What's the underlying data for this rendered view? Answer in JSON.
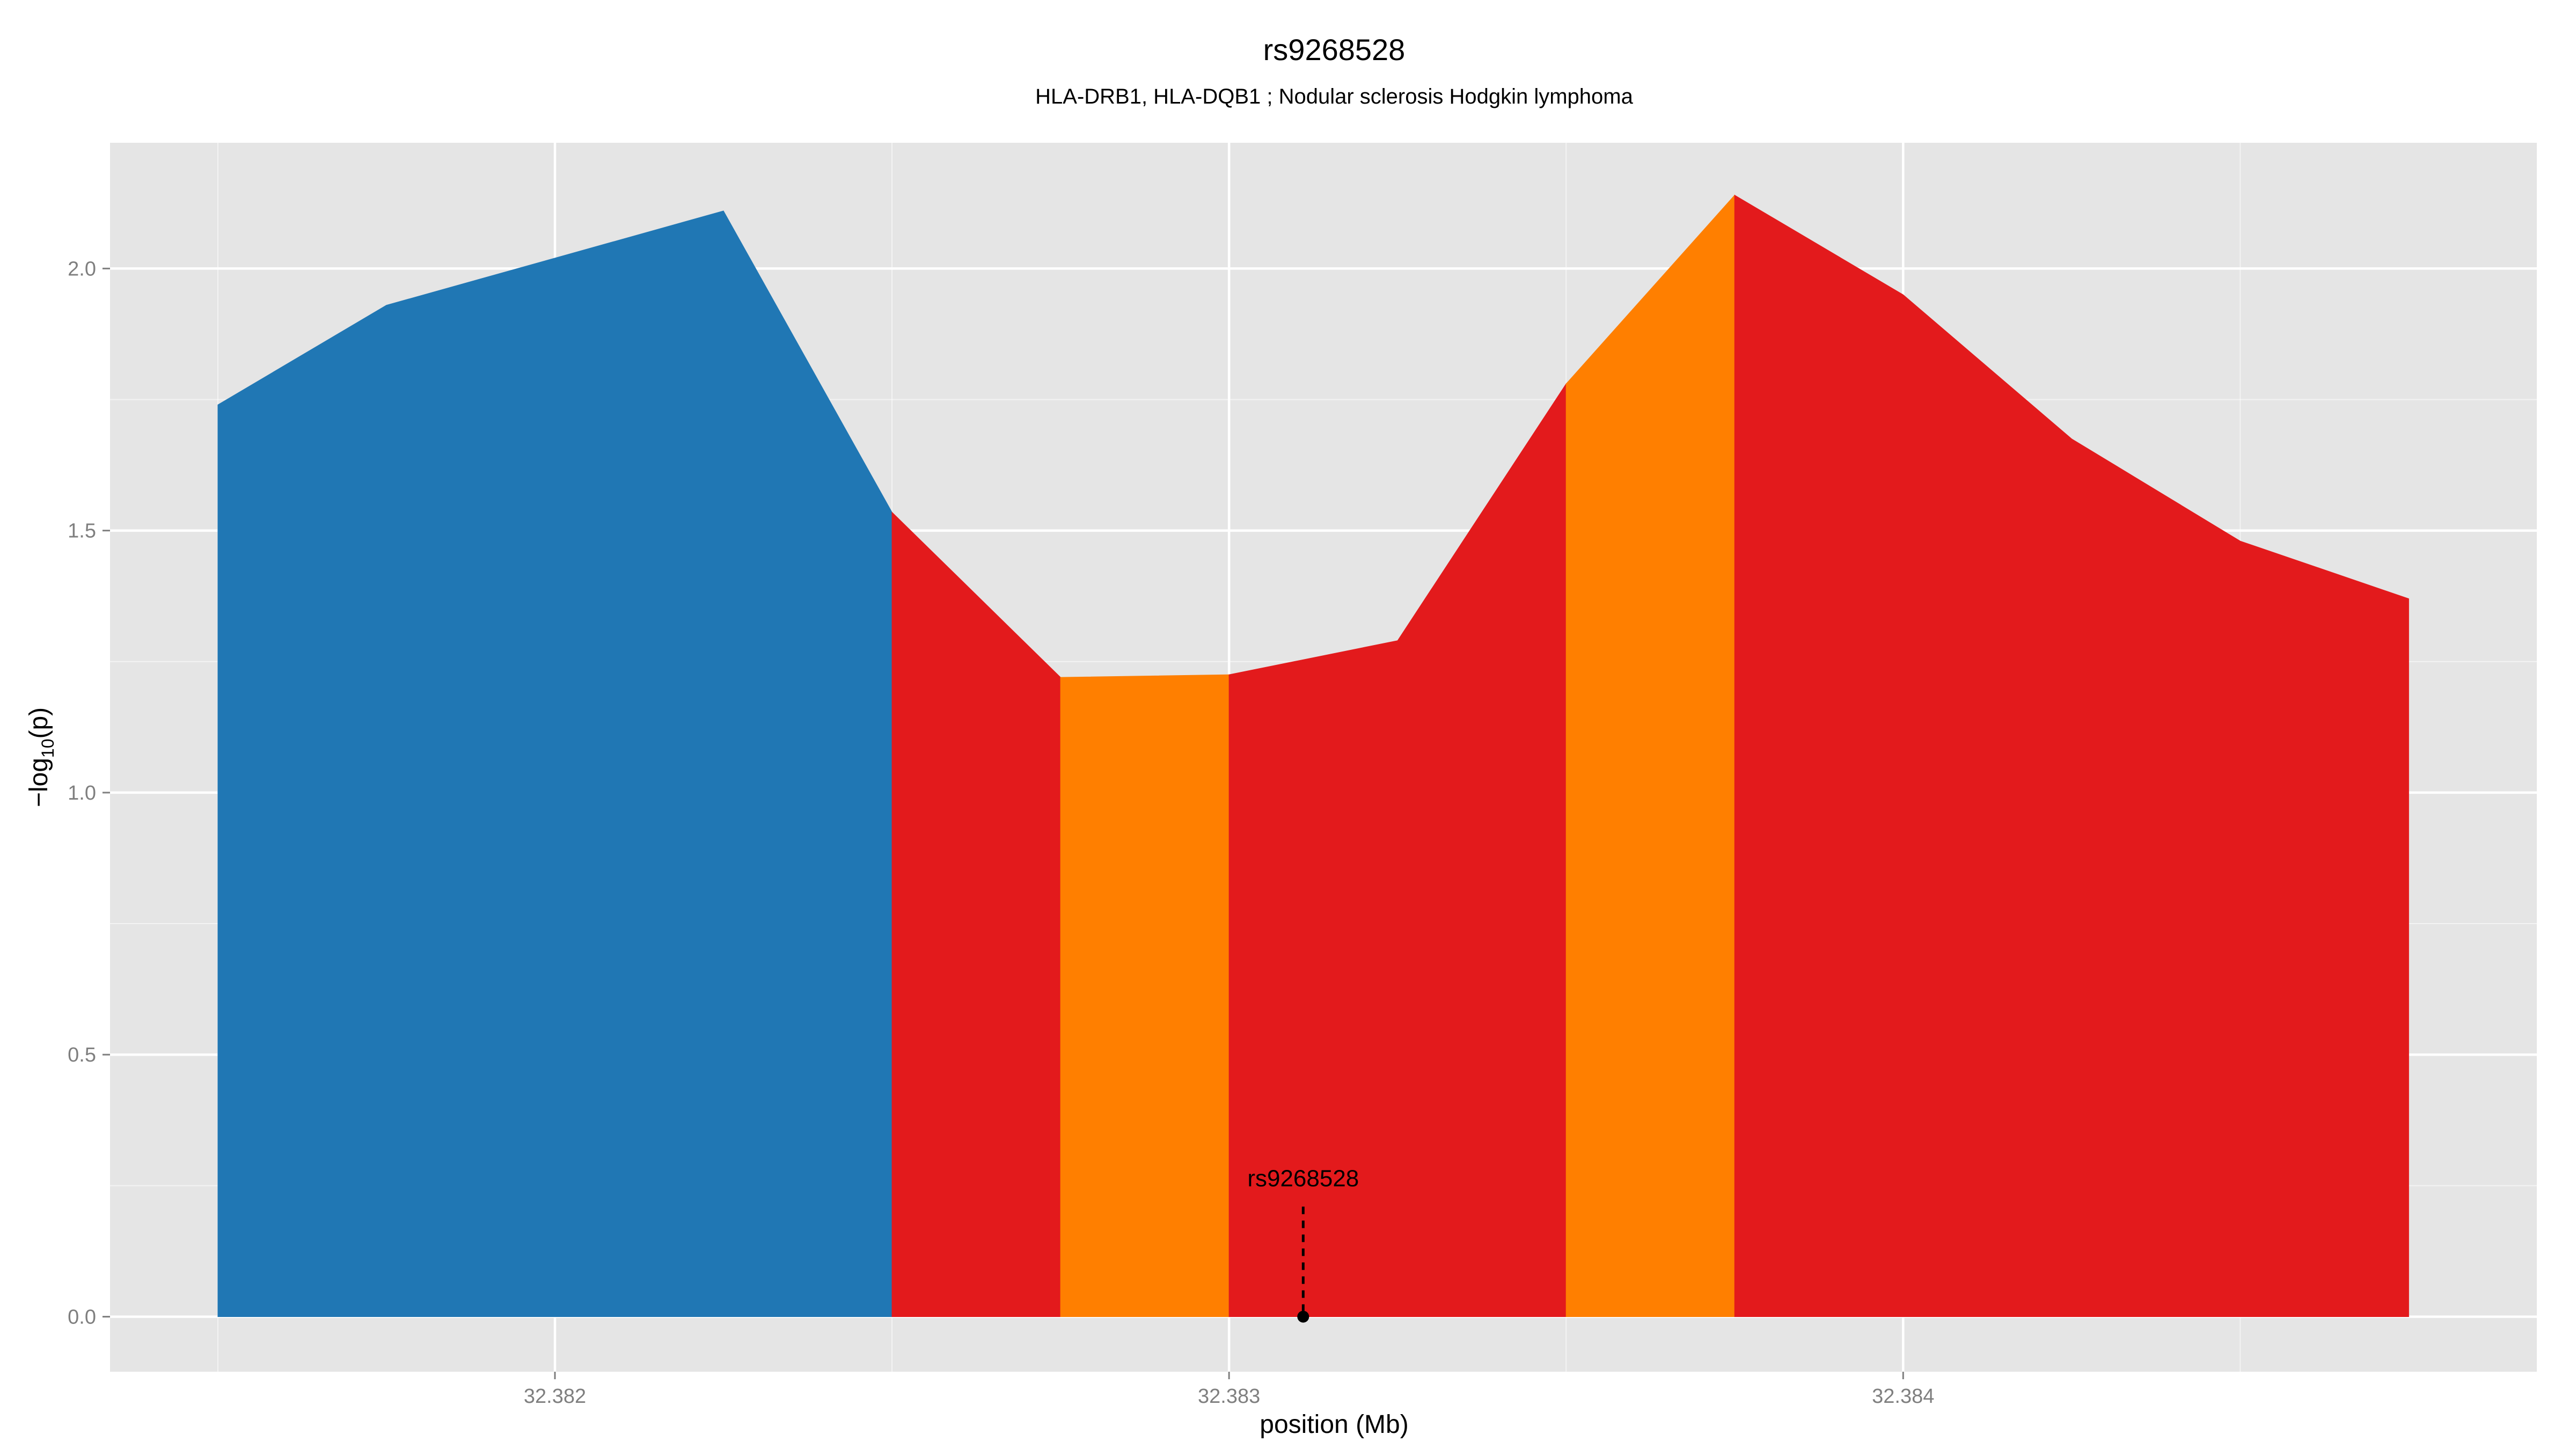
{
  "chart_data": {
    "type": "area",
    "title": "rs9268528",
    "subtitle": "HLA-DRB1, HLA-DQB1 ; Nodular sclerosis Hodgkin lymphoma",
    "xlabel": "position (Mb)",
    "ylabel": "−log10(p)",
    "ylabel_parts": {
      "prefix": "−log",
      "sub": "10",
      "suffix": "(p)"
    },
    "xlim": [
      32.38134,
      32.38494
    ],
    "ylim": [
      -0.105,
      2.24
    ],
    "grid": true,
    "x_ticks": [
      {
        "value": 32.382,
        "label": "32.382"
      },
      {
        "value": 32.383,
        "label": "32.383"
      },
      {
        "value": 32.384,
        "label": "32.384"
      }
    ],
    "x_minor_ticks": [
      32.3815,
      32.3825,
      32.3835,
      32.3845
    ],
    "y_ticks": [
      {
        "value": 0.0,
        "label": "0.0"
      },
      {
        "value": 0.5,
        "label": "0.5"
      },
      {
        "value": 1.0,
        "label": "1.0"
      },
      {
        "value": 1.5,
        "label": "1.5"
      },
      {
        "value": 2.0,
        "label": "2.0"
      }
    ],
    "y_minor_ticks": [
      0.25,
      0.75,
      1.25,
      1.75
    ],
    "segments": [
      {
        "color": "#2077B4",
        "points": [
          [
            32.3815,
            1.74
          ],
          [
            32.38175,
            1.93
          ],
          [
            32.382,
            2.02
          ],
          [
            32.38225,
            2.11
          ],
          [
            32.3825,
            1.535
          ]
        ]
      },
      {
        "color": "#E31A1C",
        "points": [
          [
            32.3825,
            1.535
          ],
          [
            32.38275,
            1.22
          ]
        ]
      },
      {
        "color": "#FF7F00",
        "points": [
          [
            32.38275,
            1.22
          ],
          [
            32.383,
            1.225
          ]
        ]
      },
      {
        "color": "#E31A1C",
        "points": [
          [
            32.383,
            1.225
          ],
          [
            32.38325,
            1.29
          ],
          [
            32.3835,
            1.78
          ]
        ]
      },
      {
        "color": "#FF7F00",
        "points": [
          [
            32.3835,
            1.78
          ],
          [
            32.38375,
            2.14
          ]
        ]
      },
      {
        "color": "#E31A1C",
        "points": [
          [
            32.38375,
            2.14
          ],
          [
            32.384,
            1.95
          ],
          [
            32.38425,
            1.675
          ],
          [
            32.3845,
            1.48
          ],
          [
            32.38475,
            1.37
          ]
        ]
      }
    ],
    "annotation": {
      "label": "rs9268528",
      "x": 32.38311,
      "y": 0.0,
      "line_top": 0.21
    },
    "colors": {
      "panel": "#E5E5E5",
      "grid": "#FFFFFF",
      "tick_text": "#7F7F7F"
    }
  }
}
